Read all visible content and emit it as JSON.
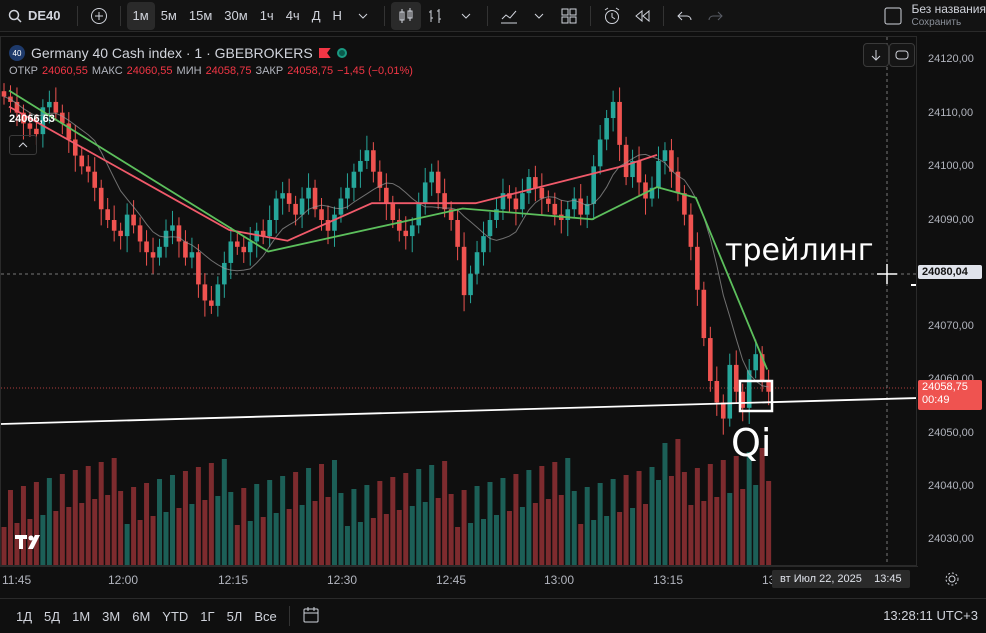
{
  "toolbar": {
    "symbol": "DE40",
    "intervals": [
      "1м",
      "5м",
      "15м",
      "30м",
      "1ч",
      "4ч",
      "Д",
      "Н"
    ],
    "active_interval": "1м",
    "save_title": "Без названия",
    "save_sub": "Сохранить"
  },
  "legend": {
    "badge": "40",
    "title": "Germany 40 Cash index · 1 · GBEBROKERS",
    "open_label": "ОТКР",
    "open": "24060,55",
    "high_label": "МАКС",
    "high": "24060,55",
    "low_label": "МИН",
    "low": "24058,75",
    "close_label": "ЗАКР",
    "close": "24058,75",
    "change": "−1,45 (−0,01%)",
    "indicator_value": "24066,63"
  },
  "annotations": {
    "trailing": "трейлинг",
    "qi": "Qi"
  },
  "price_axis": {
    "labels": [
      "24120,00",
      "24110,00",
      "24100,00",
      "24090,00",
      "24070,00",
      "24060,00",
      "24050,00",
      "24040,00",
      "24030,00"
    ],
    "crosshair_price": "24080,04",
    "last_price": "24058,75",
    "countdown": "00:49"
  },
  "time_axis": {
    "labels": [
      "11:45",
      "12:00",
      "12:15",
      "12:30",
      "12:45",
      "13:00",
      "13:15",
      "13"
    ],
    "crosshair_date": "вт Июл 22, 2025",
    "crosshair_time": "13:45"
  },
  "bottom": {
    "ranges": [
      "1Д",
      "5Д",
      "1М",
      "3М",
      "6М",
      "YTD",
      "1Г",
      "5Л",
      "Все"
    ],
    "clock": "13:28:11 UTC+3"
  },
  "colors": {
    "up": "#26a69a",
    "down": "#ef5350",
    "vol_up": "#1c5f57",
    "vol_down": "#7d2b2e"
  },
  "chart_data": {
    "type": "candlestick",
    "symbol": "Germany 40 Cash index",
    "timeframe": "1",
    "ylim": [
      24025,
      24125
    ],
    "closes": [
      24113,
      24112,
      24110,
      24108,
      24107,
      24106,
      24111,
      24112,
      24110,
      24108,
      24105,
      24102,
      24100,
      24099,
      24096,
      24092,
      24090,
      24088,
      24087,
      24091,
      24089,
      24086,
      24084,
      24083,
      24085,
      24088,
      24089,
      24086,
      24083,
      24084,
      24078,
      24075,
      24074,
      24078,
      24082,
      24086,
      24085,
      24084,
      24086,
      24088,
      24087,
      24090,
      24094,
      24095,
      24093,
      24091,
      24094,
      24096,
      24092,
      24090,
      24088,
      24091,
      24094,
      24096,
      24099,
      24101,
      24103,
      24099,
      24096,
      24093,
      24090,
      24088,
      24087,
      24089,
      24093,
      24097,
      24099,
      24095,
      24092,
      24090,
      24085,
      24076,
      24080,
      24084,
      24087,
      24090,
      24092,
      24095,
      24094,
      24092,
      24095,
      24098,
      24096,
      24094,
      24093,
      24091,
      24090,
      24092,
      24094,
      24091,
      24093,
      24100,
      24105,
      24109,
      24112,
      24104,
      24098,
      24101,
      24097,
      24094,
      24096,
      24101,
      24103,
      24099,
      24095,
      24091,
      24085,
      24077,
      24068,
      24060,
      24056,
      24053,
      24063,
      24058,
      24055,
      24062,
      24065,
      24060,
      24058
    ]
  }
}
